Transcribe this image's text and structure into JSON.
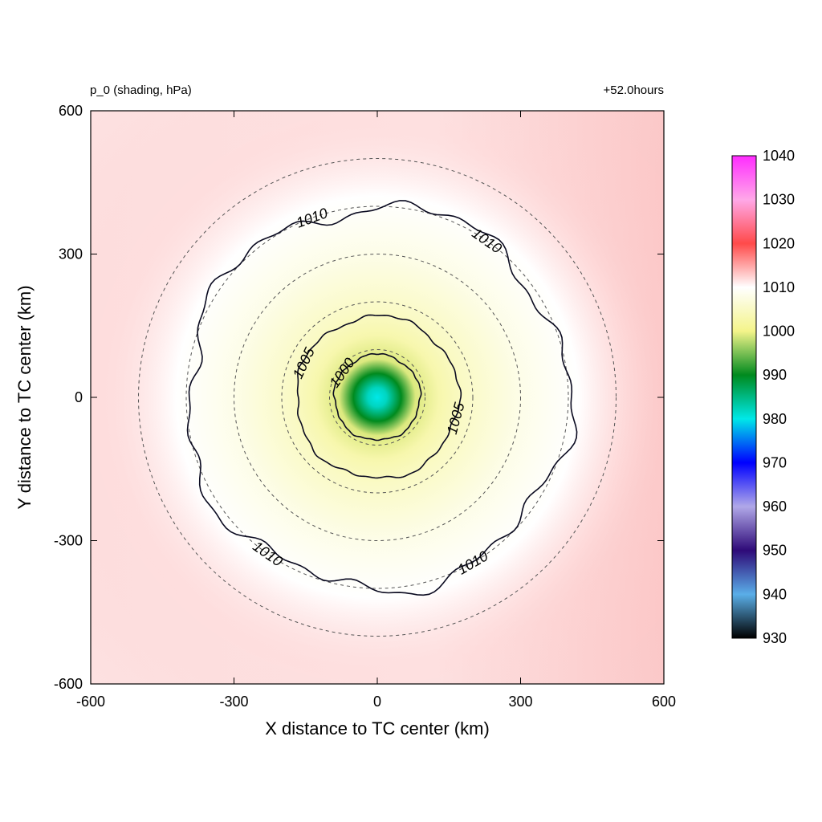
{
  "chart_data": {
    "type": "heatmap",
    "title_left": "p_0 (shading, hPa)",
    "title_right": "+52.0hours",
    "xlabel": "X distance to TC center (km)",
    "ylabel": "Y distance to TC center (km)",
    "xlim": [
      -600,
      600
    ],
    "ylim": [
      -600,
      600
    ],
    "xticks": [
      "-600",
      "-300",
      "0",
      "300",
      "600"
    ],
    "yticks": [
      "600",
      "300",
      "0",
      "-300",
      "-600"
    ],
    "colorbar": {
      "ticks": [
        "1040",
        "1030",
        "1020",
        "1010",
        "1000",
        "990",
        "980",
        "970",
        "960",
        "950",
        "940",
        "930"
      ],
      "range": [
        930,
        1040
      ],
      "stops": [
        {
          "value": 930,
          "color": "#000000"
        },
        {
          "value": 940,
          "color": "#5aaee8"
        },
        {
          "value": 950,
          "color": "#2e0a78"
        },
        {
          "value": 960,
          "color": "#b0a8e8"
        },
        {
          "value": 970,
          "color": "#0000ff"
        },
        {
          "value": 980,
          "color": "#00e8e8"
        },
        {
          "value": 990,
          "color": "#008a1e"
        },
        {
          "value": 1000,
          "color": "#f4f48a"
        },
        {
          "value": 1010,
          "color": "#ffffff"
        },
        {
          "value": 1020,
          "color": "#ff4a4a"
        },
        {
          "value": 1030,
          "color": "#ffa8e8"
        },
        {
          "value": 1040,
          "color": "#ff2cff"
        }
      ]
    },
    "field": {
      "center_km": [
        0,
        0
      ],
      "center_value": 980,
      "radial_profile": [
        {
          "r": 0,
          "p": 980
        },
        {
          "r": 20,
          "p": 982
        },
        {
          "r": 50,
          "p": 990
        },
        {
          "r": 80,
          "p": 999
        },
        {
          "r": 130,
          "p": 1003
        },
        {
          "r": 180,
          "p": 1005
        },
        {
          "r": 300,
          "p": 1008
        },
        {
          "r": 420,
          "p": 1010
        },
        {
          "r": 600,
          "p": 1013
        },
        {
          "r": 900,
          "p": 1015
        }
      ]
    },
    "contours": [
      {
        "level": 1000,
        "label": "1000",
        "radius_km": 90
      },
      {
        "level": 1005,
        "label": "1005",
        "radius_km": 170
      },
      {
        "level": 1010,
        "label": "1010",
        "radius_km": 400
      }
    ],
    "dashed_circles_km": [
      100,
      200,
      300,
      400,
      500
    ],
    "grid": false
  }
}
